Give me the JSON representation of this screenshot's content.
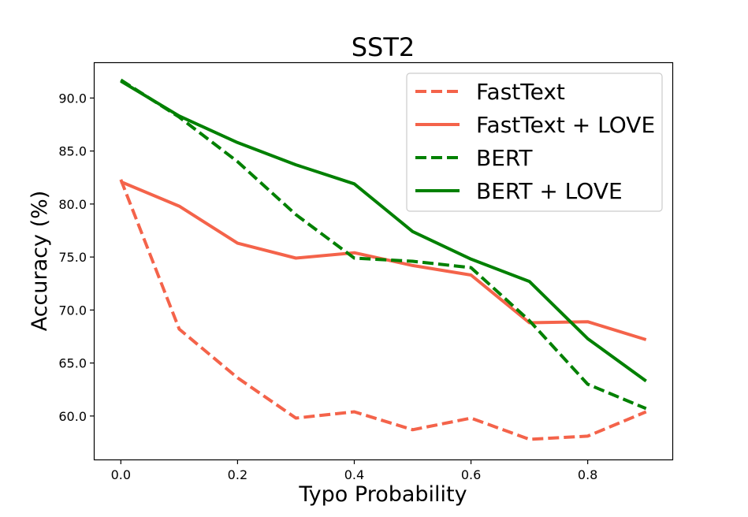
{
  "chart_data": {
    "type": "line",
    "title": "SST2",
    "xlabel": "Typo Probability",
    "ylabel": "Accuracy (%)",
    "xlim": [
      -0.045,
      0.945
    ],
    "ylim": [
      55.9,
      93.3
    ],
    "xticks": [
      0.0,
      0.2,
      0.4,
      0.6,
      0.8
    ],
    "xtick_labels": [
      "0.0",
      "0.2",
      "0.4",
      "0.6",
      "0.8"
    ],
    "yticks": [
      60.0,
      65.0,
      70.0,
      75.0,
      80.0,
      85.0,
      90.0
    ],
    "ytick_labels": [
      "60.0",
      "65.0",
      "70.0",
      "75.0",
      "80.0",
      "85.0",
      "90.0"
    ],
    "grid": false,
    "legend_position": "top-right",
    "x": [
      0.0,
      0.1,
      0.2,
      0.3,
      0.4,
      0.5,
      0.6,
      0.7,
      0.8,
      0.9
    ],
    "series": [
      {
        "name": "FastText",
        "color": "#f4634a",
        "style": "dashed",
        "values": [
          82.3,
          68.2,
          63.6,
          59.8,
          60.4,
          58.7,
          59.8,
          57.8,
          58.1,
          60.4
        ]
      },
      {
        "name": "FastText + LOVE",
        "color": "#f4634a",
        "style": "solid",
        "values": [
          82.1,
          79.8,
          76.3,
          74.9,
          75.4,
          74.2,
          73.3,
          68.8,
          68.9,
          67.2
        ]
      },
      {
        "name": "BERT",
        "color": "#008000",
        "style": "dashed",
        "values": [
          91.7,
          88.2,
          84.0,
          79.0,
          74.9,
          74.6,
          74.0,
          69.0,
          63.0,
          60.7
        ]
      },
      {
        "name": "BERT + LOVE",
        "color": "#008000",
        "style": "solid",
        "values": [
          91.6,
          88.3,
          85.8,
          83.7,
          81.9,
          77.4,
          74.8,
          72.7,
          67.3,
          63.3
        ]
      }
    ]
  }
}
